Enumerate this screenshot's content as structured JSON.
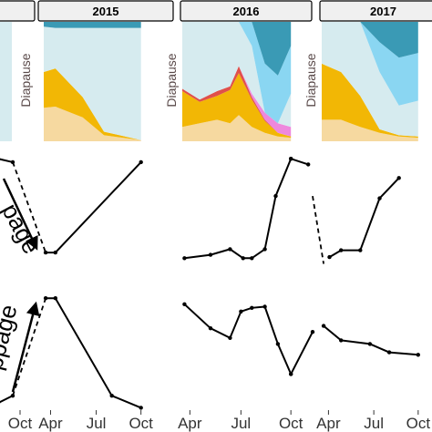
{
  "chart_data": {
    "type": "line",
    "years": [
      "",
      "2015",
      "2016",
      "2017"
    ],
    "x_tick_labels": {
      "left": [
        "Oct"
      ],
      "panel": [
        "Apr",
        "Jul",
        "Oct"
      ]
    },
    "diapause_label": "Diapause",
    "arrow_labels": {
      "middle": "page",
      "bottom": "ppage"
    },
    "x_domain": [
      0,
      6
    ],
    "area_rows": [
      {
        "year": "2015",
        "x": [
          0,
          0.6,
          2.0,
          3.1,
          5.0
        ],
        "layers": [
          {
            "color": "#f6d9a0",
            "values": [
              0.28,
              0.29,
              0.2,
              0.05,
              0.01
            ]
          },
          {
            "color": "#f2b705",
            "values": [
              0.3,
              0.32,
              0.17,
              0.03,
              0.0
            ]
          },
          {
            "color": "#d6ebef",
            "values": [
              0.38,
              0.34,
              0.58,
              0.87,
              0.94
            ]
          },
          {
            "color": "#3a9ab5",
            "values": [
              0.04,
              0.05,
              0.05,
              0.05,
              0.05
            ]
          }
        ]
      },
      {
        "year": "2016",
        "x": [
          0,
          0.8,
          1.6,
          2.2,
          2.6,
          3.2,
          3.8,
          4.4,
          5.0
        ],
        "layers": [
          {
            "color": "#f6d9a0",
            "values": [
              0.12,
              0.15,
              0.18,
              0.15,
              0.22,
              0.12,
              0.07,
              0.04,
              0.03
            ]
          },
          {
            "color": "#f2b705",
            "values": [
              0.3,
              0.18,
              0.2,
              0.28,
              0.35,
              0.23,
              0.1,
              0.03,
              0.01
            ]
          },
          {
            "color": "#e0504a",
            "values": [
              0.02,
              0.02,
              0.04,
              0.03,
              0.06,
              0.02,
              0.01,
              0.0,
              0.0
            ]
          },
          {
            "color": "#ee88dd",
            "values": [
              0.0,
              0.0,
              0.0,
              0.0,
              0.0,
              0.03,
              0.06,
              0.08,
              0.08
            ]
          },
          {
            "color": "#d6ebef",
            "values": [
              0.56,
              0.65,
              0.58,
              0.54,
              0.37,
              0.4,
              0.0,
              0.0,
              0.28
            ]
          },
          {
            "color": "#8ad6f2",
            "values": [
              0.0,
              0.0,
              0.0,
              0.0,
              0.0,
              0.2,
              0.41,
              0.4,
              0.4
            ]
          },
          {
            "color": "#3a9ab5",
            "values": [
              0.0,
              0.0,
              0.0,
              0.0,
              0.0,
              0.0,
              0.35,
              0.45,
              0.2
            ]
          }
        ]
      },
      {
        "year": "2017",
        "x": [
          0,
          1.0,
          2.0,
          3.0,
          4.0,
          5.0
        ],
        "layers": [
          {
            "color": "#f6d9a0",
            "values": [
              0.18,
              0.18,
              0.12,
              0.07,
              0.04,
              0.03
            ]
          },
          {
            "color": "#f2b705",
            "values": [
              0.47,
              0.4,
              0.26,
              0.03,
              0.01,
              0.01
            ]
          },
          {
            "color": "#d6ebef",
            "values": [
              0.35,
              0.42,
              0.62,
              0.48,
              0.25,
              0.3
            ]
          },
          {
            "color": "#8ad6f2",
            "values": [
              0.0,
              0.0,
              0.0,
              0.25,
              0.4,
              0.4
            ]
          },
          {
            "color": "#3a9ab5",
            "values": [
              0.0,
              0.0,
              0.0,
              0.17,
              0.3,
              0.26
            ]
          }
        ]
      }
    ],
    "line_rows": [
      {
        "row": "middle",
        "y_domain": [
          0,
          1
        ],
        "series": [
          {
            "panel": "2015",
            "x": [
              0.1,
              0.6,
              5.0
            ],
            "y": [
              0.12,
              0.12,
              0.92
            ]
          },
          {
            "panel": "2016",
            "x": [
              0.1,
              1.3,
              2.2,
              2.8,
              3.2,
              3.8,
              4.3,
              5.0
            ],
            "y": [
              0.07,
              0.1,
              0.15,
              0.07,
              0.07,
              0.15,
              0.62,
              0.95
            ]
          },
          {
            "panel": "2016",
            "x": [
              5.0,
              5.8
            ],
            "y": [
              0.95,
              0.9
            ]
          },
          {
            "panel": "2017",
            "x": [
              0.4,
              1.0,
              2.0,
              3.0,
              4.0
            ],
            "y": [
              0.08,
              0.14,
              0.14,
              0.6,
              0.78
            ]
          }
        ],
        "left_series": {
          "x": [
            0,
            1
          ],
          "y": [
            0.95,
            0.92
          ]
        },
        "gaps": [
          {
            "from_panel": "left",
            "to_panel": "2015",
            "y_from": 0.92,
            "y_to": 0.12
          },
          {
            "from_panel": "2016",
            "to_panel": "2017",
            "y_from": 0.62,
            "y_to": 0.02
          }
        ]
      },
      {
        "row": "bottom",
        "y_domain": [
          0,
          1
        ],
        "series": [
          {
            "panel": "2015",
            "x": [
              0.1,
              0.6,
              3.5,
              5.0
            ],
            "y": [
              0.93,
              0.93,
              0.12,
              0.02
            ]
          },
          {
            "panel": "2016",
            "x": [
              0.1,
              1.3,
              2.2,
              2.7,
              3.2,
              3.8,
              4.4,
              5.0
            ],
            "y": [
              0.88,
              0.68,
              0.6,
              0.82,
              0.85,
              0.86,
              0.55,
              0.3
            ]
          },
          {
            "panel": "2016",
            "x": [
              5.0,
              6.0
            ],
            "y": [
              0.3,
              0.65
            ]
          },
          {
            "panel": "2017",
            "x": [
              0.1,
              1.0,
              2.5,
              3.5,
              5.0
            ],
            "y": [
              0.7,
              0.58,
              0.55,
              0.48,
              0.46
            ]
          }
        ],
        "left_series": {
          "x": [
            0,
            1
          ],
          "y": [
            0.06,
            0.12
          ]
        },
        "gaps": [
          {
            "from_panel": "left",
            "to_panel": "2015",
            "y_from": 0.12,
            "y_to": 0.93
          }
        ]
      }
    ],
    "colors": {
      "strip_fill": "#f0f0f0",
      "line": "#000000",
      "tick": "#333333"
    }
  }
}
